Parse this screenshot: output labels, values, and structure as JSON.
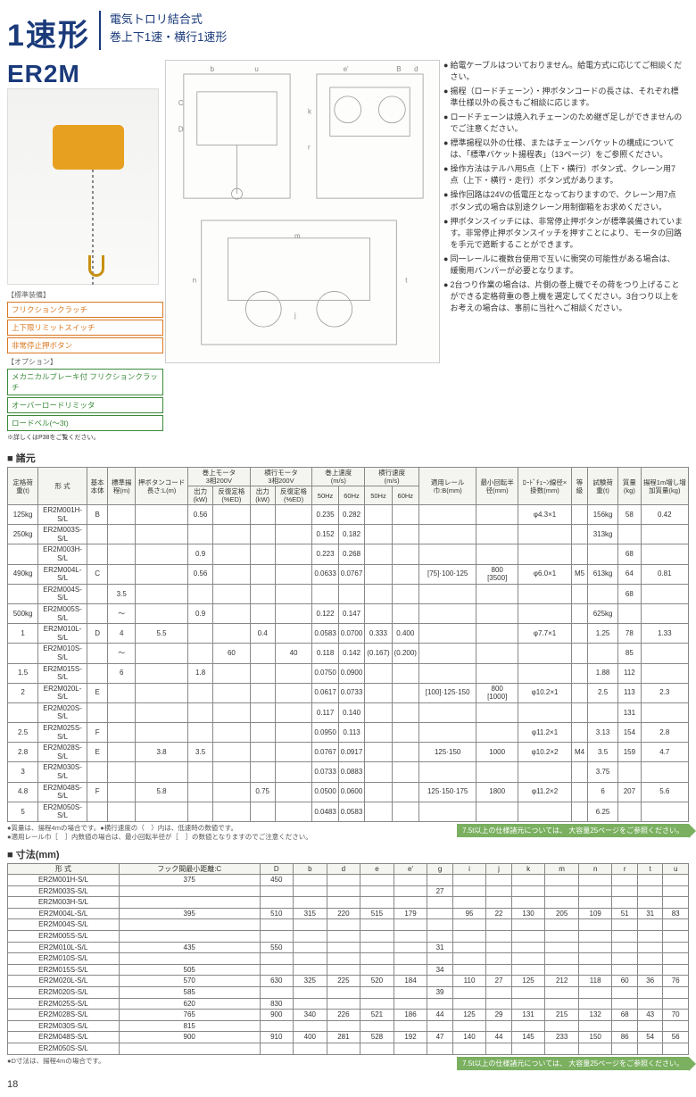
{
  "page_number": "18",
  "header": {
    "title": "1速形",
    "subtitle_line1": "電気トロリ結合式",
    "subtitle_line2": "巻上下1速・横行1速形",
    "model": "ER2M"
  },
  "badges": {
    "std_label": "【標準装備】",
    "std": [
      "フリクションクラッチ",
      "上下限リミットスイッチ",
      "非常停止押ボタン"
    ],
    "opt_label": "【オプション】",
    "opt": [
      "メカニカルブレーキ付\nフリクションクラッチ",
      "オーバーロードリミッタ",
      "ロードベル(〜3t)"
    ],
    "opt_note": "※詳しくはP38をご覧ください。"
  },
  "notes": [
    "給電ケーブルはついておりません。給電方式に応じてご相談ください。",
    "揚程（ロードチェーン）・押ボタンコードの長さは、それぞれ標準仕様以外の長さもご相談に応じます。",
    "ロードチェーンは焼入れチェーンのため継ぎ足しができませんのでご注意ください。",
    "標準揚程以外の仕様、またはチェーンバケットの構成については、「標準バケット揚程表」（13ページ）をご参照ください。",
    "操作方法はテルハ用5点（上下・横行）ボタン式、クレーン用7点（上下・横行・走行）ボタン式があります。",
    "操作回路は24Vの低電圧となっておりますので、クレーン用7点ボタン式の場合は別途クレーン用制御箱をお求めください。",
    "押ボタンスイッチには、非常停止押ボタンが標準装備されています。非常停止押ボタンスイッチを押すことにより、モータの回路を手元で遮断することができます。",
    "同一レールに複数台使用で互いに衝突の可能性がある場合は、緩衝用バンパーが必要となります。",
    "2台つり作業の場合は、片側の巻上機でその荷をつり上げることができる定格荷重の巻上機を選定してください。3台つり以上をお考えの場合は、事前に当社へご相談ください。"
  ],
  "spec_section_title": "■ 諸元",
  "spec_headers": {
    "h1": [
      "定格荷重(t)",
      "形 式",
      "基本本体",
      "標準揚程(m)",
      "押ボタンコード長さ:L(m)",
      "巻上モータ\n3相200V",
      "横行モータ\n3相200V",
      "巻上速度\n(m/s)",
      "横行速度\n(m/s)",
      "適用レール巾:B(mm)",
      "最小回転半径(mm)",
      "ﾛｰﾄﾞﾁｪｰﾝ線径×掛数(mm)",
      "等級",
      "試験荷重(t)",
      "質量(kg)",
      "揚程1m増し増加質量(kg)"
    ],
    "h2_motor": [
      "出力(kW)",
      "反復定格(%ED)",
      "出力(kW)",
      "反復定格(%ED)",
      "50Hz",
      "60Hz",
      "50Hz",
      "60Hz"
    ]
  },
  "spec_rows": [
    {
      "load": "125kg",
      "model": "ER2M001H-S/L",
      "body": "B",
      "lift": "",
      "cord": "",
      "kw1": "0.56",
      "ed1": "",
      "kw2": "",
      "ed2": "",
      "v50": "0.235",
      "v60": "0.282",
      "t50": "",
      "t60": "",
      "rail": "",
      "rad": "",
      "chain": "φ4.3×1",
      "grade": "",
      "test": "156kg",
      "mass": "58",
      "add": "0.42"
    },
    {
      "load": "250kg",
      "model": "ER2M003S-S/L",
      "body": "",
      "lift": "",
      "cord": "",
      "kw1": "",
      "ed1": "",
      "kw2": "",
      "ed2": "",
      "v50": "0.152",
      "v60": "0.182",
      "t50": "",
      "t60": "",
      "rail": "",
      "rad": "",
      "chain": "",
      "grade": "",
      "test": "313kg",
      "mass": "",
      "add": ""
    },
    {
      "load": "",
      "model": "ER2M003H-S/L",
      "body": "",
      "lift": "",
      "cord": "",
      "kw1": "0.9",
      "ed1": "",
      "kw2": "",
      "ed2": "",
      "v50": "0.223",
      "v60": "0.268",
      "t50": "",
      "t60": "",
      "rail": "",
      "rad": "",
      "chain": "",
      "grade": "",
      "test": "",
      "mass": "68",
      "add": ""
    },
    {
      "load": "490kg",
      "model": "ER2M004L-S/L",
      "body": "C",
      "lift": "",
      "cord": "",
      "kw1": "0.56",
      "ed1": "",
      "kw2": "",
      "ed2": "",
      "v50": "0.0633",
      "v60": "0.0767",
      "t50": "",
      "t60": "",
      "rail": "[75]·100·125",
      "rad": "800\n[3500]",
      "chain": "φ6.0×1",
      "grade": "M5",
      "test": "613kg",
      "mass": "64",
      "add": "0.81"
    },
    {
      "load": "",
      "model": "ER2M004S-S/L",
      "body": "",
      "lift": "3.5",
      "cord": "",
      "kw1": "",
      "ed1": "",
      "kw2": "",
      "ed2": "",
      "v50": "",
      "v60": "",
      "t50": "",
      "t60": "",
      "rail": "",
      "rad": "",
      "chain": "",
      "grade": "",
      "test": "",
      "mass": "68",
      "add": ""
    },
    {
      "load": "500kg",
      "model": "ER2M005S-S/L",
      "body": "",
      "lift": "〜",
      "cord": "",
      "kw1": "0.9",
      "ed1": "",
      "kw2": "",
      "ed2": "",
      "v50": "0.122",
      "v60": "0.147",
      "t50": "",
      "t60": "",
      "rail": "",
      "rad": "",
      "chain": "",
      "grade": "",
      "test": "625kg",
      "mass": "",
      "add": ""
    },
    {
      "load": "1",
      "model": "ER2M010L-S/L",
      "body": "D",
      "lift": "4",
      "cord": "5.5",
      "kw1": "",
      "ed1": "",
      "kw2": "0.4",
      "ed2": "",
      "v50": "0.0583",
      "v60": "0.0700",
      "t50": "0.333",
      "t60": "0.400",
      "rail": "",
      "rad": "",
      "chain": "φ7.7×1",
      "grade": "",
      "test": "1.25",
      "mass": "78",
      "add": "1.33"
    },
    {
      "load": "",
      "model": "ER2M010S-S/L",
      "body": "",
      "lift": "〜",
      "cord": "",
      "kw1": "",
      "ed1": "60",
      "kw2": "",
      "ed2": "40",
      "v50": "0.118",
      "v60": "0.142",
      "t50": "(0.167)",
      "t60": "(0.200)",
      "rail": "",
      "rad": "",
      "chain": "",
      "grade": "",
      "test": "",
      "mass": "85",
      "add": ""
    },
    {
      "load": "1.5",
      "model": "ER2M015S-S/L",
      "body": "",
      "lift": "6",
      "cord": "",
      "kw1": "1.8",
      "ed1": "",
      "kw2": "",
      "ed2": "",
      "v50": "0.0750",
      "v60": "0.0900",
      "t50": "",
      "t60": "",
      "rail": "",
      "rad": "",
      "chain": "",
      "grade": "",
      "test": "1.88",
      "mass": "112",
      "add": ""
    },
    {
      "load": "2",
      "model": "ER2M020L-S/L",
      "body": "E",
      "lift": "",
      "cord": "",
      "kw1": "",
      "ed1": "",
      "kw2": "",
      "ed2": "",
      "v50": "0.0617",
      "v60": "0.0733",
      "t50": "",
      "t60": "",
      "rail": "[100]·125·150",
      "rad": "800\n[1000]",
      "chain": "φ10.2×1",
      "grade": "",
      "test": "2.5",
      "mass": "113",
      "add": "2.3"
    },
    {
      "load": "",
      "model": "ER2M020S-S/L",
      "body": "",
      "lift": "",
      "cord": "",
      "kw1": "",
      "ed1": "",
      "kw2": "",
      "ed2": "",
      "v50": "0.117",
      "v60": "0.140",
      "t50": "",
      "t60": "",
      "rail": "",
      "rad": "",
      "chain": "",
      "grade": "",
      "test": "",
      "mass": "131",
      "add": ""
    },
    {
      "load": "2.5",
      "model": "ER2M025S-S/L",
      "body": "F",
      "lift": "",
      "cord": "",
      "kw1": "",
      "ed1": "",
      "kw2": "",
      "ed2": "",
      "v50": "0.0950",
      "v60": "0.113",
      "t50": "",
      "t60": "",
      "rail": "",
      "rad": "",
      "chain": "φ11.2×1",
      "grade": "",
      "test": "3.13",
      "mass": "154",
      "add": "2.8"
    },
    {
      "load": "2.8",
      "model": "ER2M028S-S/L",
      "body": "E",
      "lift": "",
      "cord": "3.8",
      "kw1": "3.5",
      "ed1": "",
      "kw2": "",
      "ed2": "",
      "v50": "0.0767",
      "v60": "0.0917",
      "t50": "",
      "t60": "",
      "rail": "125·150",
      "rad": "1000",
      "chain": "φ10.2×2",
      "grade": "M4",
      "test": "3.5",
      "mass": "159",
      "add": "4.7"
    },
    {
      "load": "3",
      "model": "ER2M030S-S/L",
      "body": "",
      "lift": "",
      "cord": "",
      "kw1": "",
      "ed1": "",
      "kw2": "",
      "ed2": "",
      "v50": "0.0733",
      "v60": "0.0883",
      "t50": "",
      "t60": "",
      "rail": "",
      "rad": "",
      "chain": "",
      "grade": "",
      "test": "3.75",
      "mass": "",
      "add": ""
    },
    {
      "load": "4.8",
      "model": "ER2M048S-S/L",
      "body": "F",
      "lift": "",
      "cord": "5.8",
      "kw1": "",
      "ed1": "",
      "kw2": "0.75",
      "ed2": "",
      "v50": "0.0500",
      "v60": "0.0600",
      "t50": "",
      "t60": "",
      "rail": "125·150·175",
      "rad": "1800",
      "chain": "φ11.2×2",
      "grade": "",
      "test": "6",
      "mass": "207",
      "add": "5.6"
    },
    {
      "load": "5",
      "model": "ER2M050S-S/L",
      "body": "",
      "lift": "",
      "cord": "",
      "kw1": "",
      "ed1": "",
      "kw2": "",
      "ed2": "",
      "v50": "0.0483",
      "v60": "0.0583",
      "t50": "",
      "t60": "",
      "rail": "",
      "rad": "",
      "chain": "",
      "grade": "",
      "test": "6.25",
      "mass": "",
      "add": ""
    }
  ],
  "spec_footnotes": [
    "●質量は、揚程4mの場合です。●横行速度の（　）内は、低速時の数値です。",
    "●適用レール巾［　］内数値の場合は、最小回転半径が［　］の数値となりますのでご注意ください。"
  ],
  "dim_section_title": "■ 寸法(mm)",
  "dim_headers": [
    "形 式",
    "フック間最小距離:C",
    "D",
    "b",
    "d",
    "e",
    "e'",
    "g",
    "i",
    "j",
    "k",
    "m",
    "n",
    "r",
    "t",
    "u"
  ],
  "dim_rows": [
    {
      "model": "ER2M001H-S/L",
      "C": "375",
      "D": "450",
      "b": "",
      "d": "",
      "e": "",
      "ep": "",
      "g": "",
      "i": "",
      "j": "",
      "k": "",
      "m": "",
      "n": "",
      "r": "",
      "t": "",
      "u": ""
    },
    {
      "model": "ER2M003S-S/L",
      "C": "",
      "D": "",
      "b": "",
      "d": "",
      "e": "",
      "ep": "",
      "g": "27",
      "i": "",
      "j": "",
      "k": "",
      "m": "",
      "n": "",
      "r": "",
      "t": "",
      "u": ""
    },
    {
      "model": "ER2M003H-S/L",
      "C": "",
      "D": "",
      "b": "",
      "d": "",
      "e": "",
      "ep": "",
      "g": "",
      "i": "",
      "j": "",
      "k": "",
      "m": "",
      "n": "",
      "r": "",
      "t": "",
      "u": ""
    },
    {
      "model": "ER2M004L-S/L",
      "C": "395",
      "D": "510",
      "b": "315",
      "d": "220",
      "e": "515",
      "ep": "179",
      "g": "",
      "i": "95",
      "j": "22",
      "k": "130",
      "m": "205",
      "n": "109",
      "r": "51",
      "t": "31",
      "u": "83"
    },
    {
      "model": "ER2M004S-S/L",
      "C": "",
      "D": "",
      "b": "",
      "d": "",
      "e": "",
      "ep": "",
      "g": "",
      "i": "",
      "j": "",
      "k": "",
      "m": "",
      "n": "",
      "r": "",
      "t": "",
      "u": ""
    },
    {
      "model": "ER2M005S-S/L",
      "C": "",
      "D": "",
      "b": "",
      "d": "",
      "e": "",
      "ep": "",
      "g": "",
      "i": "",
      "j": "",
      "k": "",
      "m": "",
      "n": "",
      "r": "",
      "t": "",
      "u": ""
    },
    {
      "model": "ER2M010L-S/L",
      "C": "435",
      "D": "550",
      "b": "",
      "d": "",
      "e": "",
      "ep": "",
      "g": "31",
      "i": "",
      "j": "",
      "k": "",
      "m": "",
      "n": "",
      "r": "",
      "t": "",
      "u": ""
    },
    {
      "model": "ER2M010S-S/L",
      "C": "",
      "D": "",
      "b": "",
      "d": "",
      "e": "",
      "ep": "",
      "g": "",
      "i": "",
      "j": "",
      "k": "",
      "m": "",
      "n": "",
      "r": "",
      "t": "",
      "u": ""
    },
    {
      "model": "ER2M015S-S/L",
      "C": "505",
      "D": "",
      "b": "",
      "d": "",
      "e": "",
      "ep": "",
      "g": "34",
      "i": "",
      "j": "",
      "k": "",
      "m": "",
      "n": "",
      "r": "",
      "t": "",
      "u": ""
    },
    {
      "model": "ER2M020L-S/L",
      "C": "570",
      "D": "630",
      "b": "325",
      "d": "225",
      "e": "520",
      "ep": "184",
      "g": "",
      "i": "110",
      "j": "27",
      "k": "125",
      "m": "212",
      "n": "118",
      "r": "60",
      "t": "36",
      "u": "76"
    },
    {
      "model": "ER2M020S-S/L",
      "C": "585",
      "D": "",
      "b": "",
      "d": "",
      "e": "",
      "ep": "",
      "g": "39",
      "i": "",
      "j": "",
      "k": "",
      "m": "",
      "n": "",
      "r": "",
      "t": "",
      "u": ""
    },
    {
      "model": "ER2M025S-S/L",
      "C": "620",
      "D": "830",
      "b": "",
      "d": "",
      "e": "",
      "ep": "",
      "g": "",
      "i": "",
      "j": "",
      "k": "",
      "m": "",
      "n": "",
      "r": "",
      "t": "",
      "u": ""
    },
    {
      "model": "ER2M028S-S/L",
      "C": "765",
      "D": "900",
      "b": "340",
      "d": "226",
      "e": "521",
      "ep": "186",
      "g": "44",
      "i": "125",
      "j": "29",
      "k": "131",
      "m": "215",
      "n": "132",
      "r": "68",
      "t": "43",
      "u": "70"
    },
    {
      "model": "ER2M030S-S/L",
      "C": "815",
      "D": "",
      "b": "",
      "d": "",
      "e": "",
      "ep": "",
      "g": "",
      "i": "",
      "j": "",
      "k": "",
      "m": "",
      "n": "",
      "r": "",
      "t": "",
      "u": ""
    },
    {
      "model": "ER2M048S-S/L",
      "C": "900",
      "D": "910",
      "b": "400",
      "d": "281",
      "e": "528",
      "ep": "192",
      "g": "47",
      "i": "140",
      "j": "44",
      "k": "145",
      "m": "233",
      "n": "150",
      "r": "86",
      "t": "54",
      "u": "56"
    },
    {
      "model": "ER2M050S-S/L",
      "C": "",
      "D": "",
      "b": "",
      "d": "",
      "e": "",
      "ep": "",
      "g": "",
      "i": "",
      "j": "",
      "k": "",
      "m": "",
      "n": "",
      "r": "",
      "t": "",
      "u": ""
    }
  ],
  "dim_footnote": "●D寸法は、揚程4mの場合です。",
  "callout": "7.5t以上の仕様諸元については、\n大容量25ページをご参照ください。"
}
